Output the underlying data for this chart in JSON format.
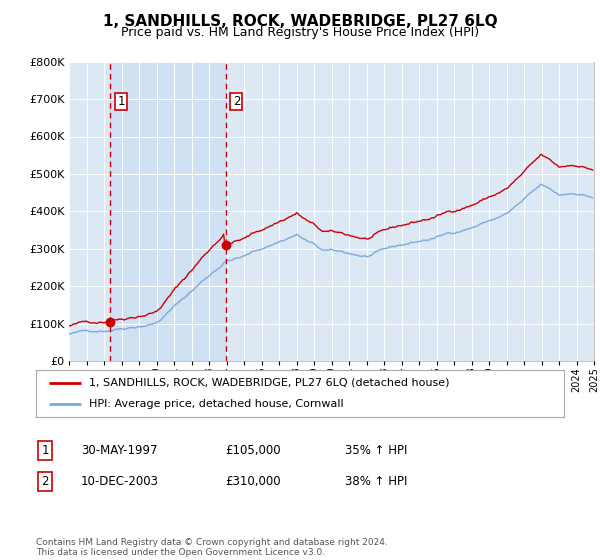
{
  "title": "1, SANDHILLS, ROCK, WADEBRIDGE, PL27 6LQ",
  "subtitle": "Price paid vs. HM Land Registry's House Price Index (HPI)",
  "legend_line1": "1, SANDHILLS, ROCK, WADEBRIDGE, PL27 6LQ (detached house)",
  "legend_line2": "HPI: Average price, detached house, Cornwall",
  "sale1_label": "1",
  "sale1_date": "30-MAY-1997",
  "sale1_price": "£105,000",
  "sale1_hpi": "35% ↑ HPI",
  "sale2_label": "2",
  "sale2_date": "10-DEC-2003",
  "sale2_price": "£310,000",
  "sale2_hpi": "38% ↑ HPI",
  "footer": "Contains HM Land Registry data © Crown copyright and database right 2024.\nThis data is licensed under the Open Government Licence v3.0.",
  "ylim": [
    0,
    800000
  ],
  "sale1_year": 1997.37,
  "sale2_year": 2003.95,
  "sale1_value": 105000,
  "sale2_value": 310000,
  "red_line_color": "#cc0000",
  "blue_line_color": "#7aaadd",
  "bg_color": "#dce9f5",
  "shade_color": "#ccddf0",
  "vline_color": "#cc0000",
  "sale_marker_color": "#cc0000",
  "grid_color": "#ffffff",
  "title_fontsize": 11,
  "subtitle_fontsize": 9
}
